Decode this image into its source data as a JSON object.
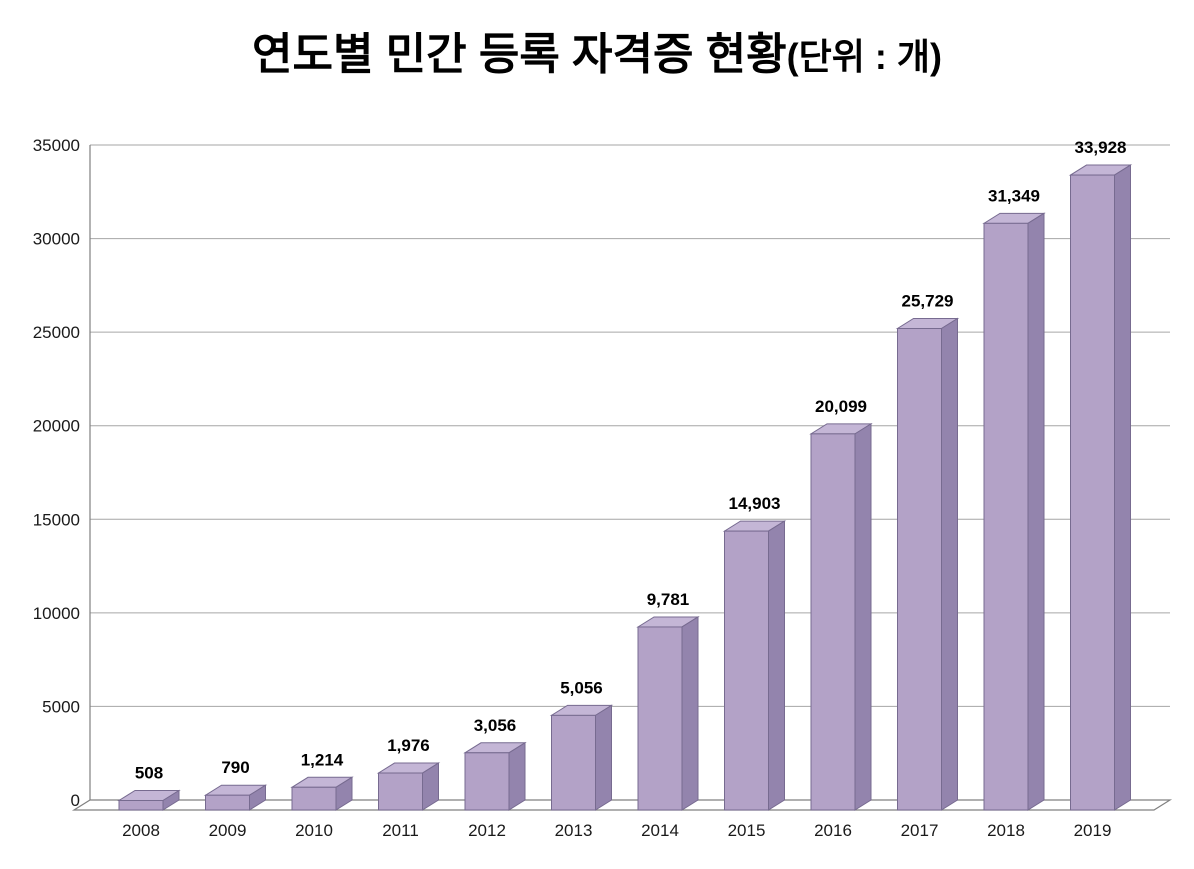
{
  "title": {
    "main": "연도별 민간 등록 자격증 현황",
    "unit": "(단위 : 개)"
  },
  "chart_data": {
    "type": "bar",
    "style": "3d-column",
    "title": "연도별 민간 등록 자격증 현황(단위 : 개)",
    "xlabel": "",
    "ylabel": "",
    "categories": [
      "2008",
      "2009",
      "2010",
      "2011",
      "2012",
      "2013",
      "2014",
      "2015",
      "2016",
      "2017",
      "2018",
      "2019"
    ],
    "values": [
      508,
      790,
      1214,
      1976,
      3056,
      5056,
      9781,
      14903,
      20099,
      25729,
      31349,
      33928
    ],
    "value_labels": [
      "508",
      "790",
      "1,214",
      "1,976",
      "3,056",
      "5,056",
      "9,781",
      "14,903",
      "20,099",
      "25,729",
      "31,349",
      "33,928"
    ],
    "ylim": [
      0,
      35000
    ],
    "ytick_step": 5000,
    "ytick_labels": [
      "0",
      "5000",
      "10000",
      "15000",
      "20000",
      "25000",
      "30000",
      "35000"
    ],
    "grid": true,
    "legend": "none",
    "colors": {
      "bar_front": "#b3a2c7",
      "bar_top": "#c4b6d6",
      "bar_side": "#9384ad",
      "bar_outline": "#776b90",
      "gridline": "#a6a6a6",
      "axis": "#808080",
      "label": "#1a1a1a",
      "background": "#ffffff"
    }
  }
}
